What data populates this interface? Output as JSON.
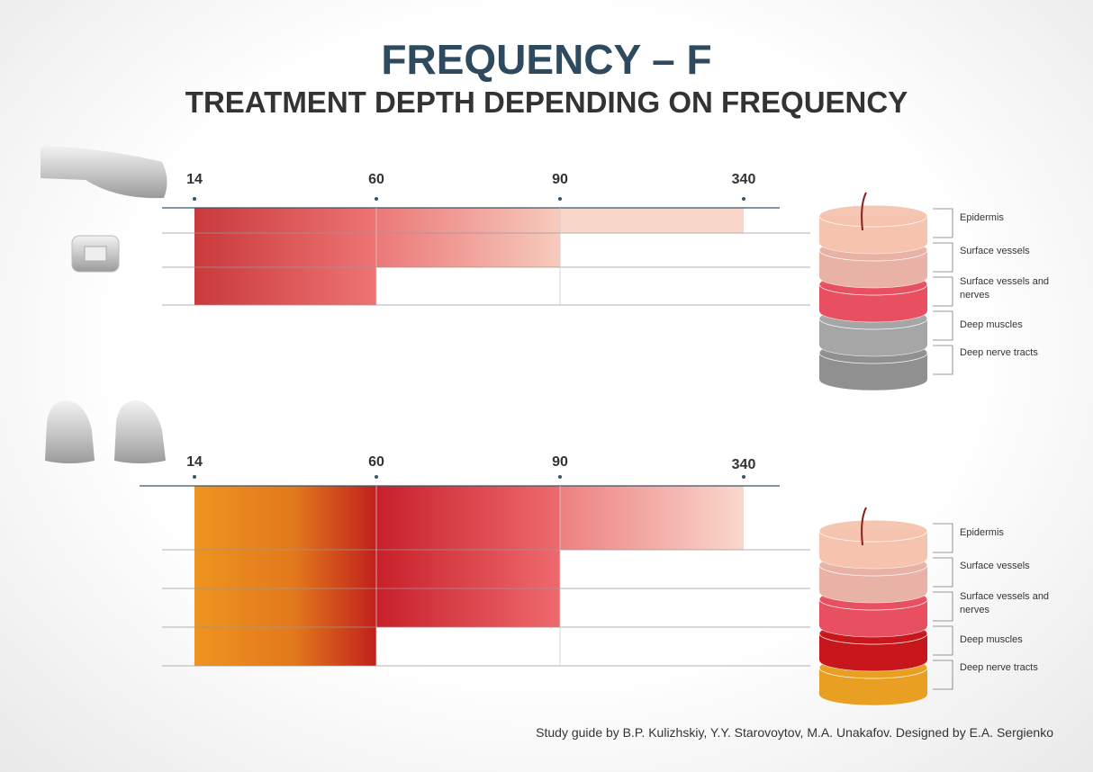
{
  "title": "FREQUENCY – F",
  "subtitle": "TREATMENT DEPTH DEPENDING ON FREQUENCY",
  "panels": [
    {
      "frequencies": [
        14,
        60,
        90,
        340
      ],
      "layers": [
        "Epidermis",
        "Surface vessels",
        "Surface vessels and nerves",
        "Deep muscles",
        "Deep nerve tracts"
      ]
    },
    {
      "frequencies": [
        14,
        60,
        90,
        340
      ],
      "layers": [
        "Epidermis",
        "Surface vessels",
        "Surface vessels and nerves",
        "Deep muscles",
        "Deep nerve tracts"
      ]
    }
  ],
  "credit": "Study guide by B.P. Kulizhskiy,  Y.Y. Starovoytov, M.A. Unakafov. Designed by E.A. Sergienko"
}
